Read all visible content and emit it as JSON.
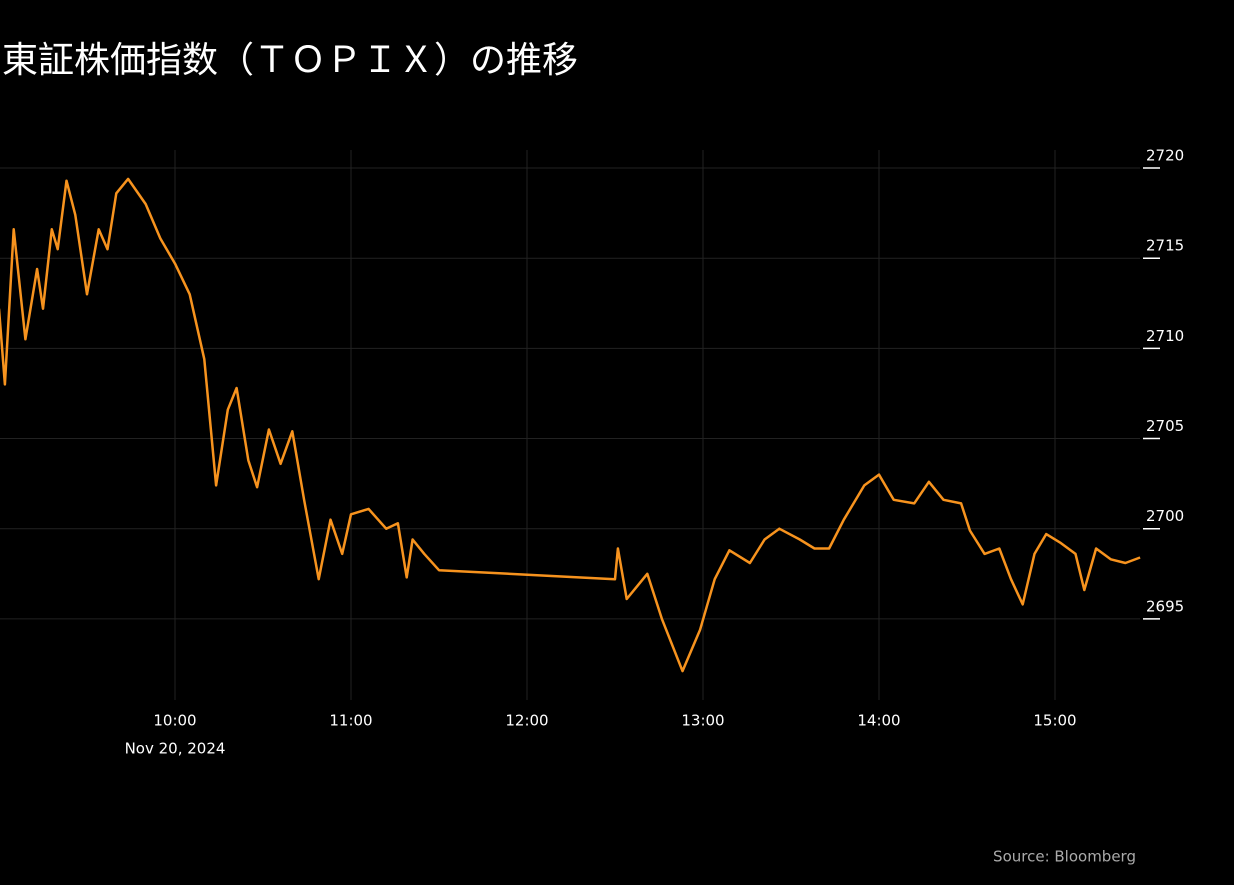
{
  "chart_data": {
    "type": "line",
    "title": "東証株価指数（ＴＯＰＩＸ）の推移",
    "source": "Source: Bloomberg",
    "x_date_label": "Nov 20, 2024",
    "x": [
      "09:00",
      "09:02",
      "09:05",
      "09:09",
      "09:13",
      "09:15",
      "09:18",
      "09:20",
      "09:23",
      "09:26",
      "09:30",
      "09:34",
      "09:37",
      "09:40",
      "09:44",
      "09:50",
      "09:55",
      "10:00",
      "10:05",
      "10:10",
      "10:14",
      "10:18",
      "10:21",
      "10:25",
      "10:28",
      "10:32",
      "10:36",
      "10:40",
      "10:44",
      "10:49",
      "10:53",
      "10:57",
      "11:00",
      "11:06",
      "11:12",
      "11:16",
      "11:19",
      "11:21",
      "11:25",
      "11:30",
      "12:30",
      "12:31",
      "12:34",
      "12:41",
      "12:46",
      "12:53",
      "12:59",
      "13:04",
      "13:09",
      "13:16",
      "13:21",
      "13:26",
      "13:33",
      "13:38",
      "13:43",
      "13:48",
      "13:55",
      "14:00",
      "14:05",
      "14:12",
      "14:17",
      "14:22",
      "14:28",
      "14:31",
      "14:36",
      "14:41",
      "14:45",
      "14:49",
      "14:53",
      "14:57",
      "15:02",
      "15:07",
      "15:10",
      "15:14",
      "15:19",
      "15:24",
      "15:29"
    ],
    "series": [
      {
        "name": "TOPIX",
        "color": "#f7931e",
        "values": [
          2712.2,
          2708.0,
          2716.6,
          2710.5,
          2714.4,
          2712.2,
          2716.6,
          2715.5,
          2719.3,
          2717.4,
          2713.0,
          2716.6,
          2715.5,
          2718.6,
          2719.4,
          2718.0,
          2716.1,
          2714.7,
          2713.0,
          2709.4,
          2702.4,
          2706.6,
          2707.8,
          2703.8,
          2702.3,
          2705.5,
          2703.6,
          2705.4,
          2701.6,
          2697.2,
          2700.5,
          2698.6,
          2700.8,
          2701.1,
          2700.0,
          2700.3,
          2697.3,
          2699.4,
          2698.6,
          2697.7,
          2697.2,
          2698.9,
          2696.1,
          2697.5,
          2695.0,
          2692.1,
          2694.4,
          2697.2,
          2698.8,
          2698.1,
          2699.4,
          2700.0,
          2699.4,
          2698.9,
          2698.9,
          2700.5,
          2702.4,
          2703.0,
          2701.6,
          2701.4,
          2702.6,
          2701.6,
          2701.4,
          2699.9,
          2698.6,
          2698.9,
          2697.2,
          2695.8,
          2698.6,
          2699.7,
          2699.2,
          2698.6,
          2696.6,
          2698.9,
          2698.3,
          2698.1,
          2698.4
        ]
      }
    ],
    "xlim": [
      "09:00",
      "15:30"
    ],
    "xticks": [
      "10:00",
      "11:00",
      "12:00",
      "13:00",
      "14:00",
      "15:00"
    ],
    "ylim": [
      2690.5,
      2721
    ],
    "yticks": [
      2695,
      2700,
      2705,
      2710,
      2715,
      2720
    ],
    "grid": true
  }
}
